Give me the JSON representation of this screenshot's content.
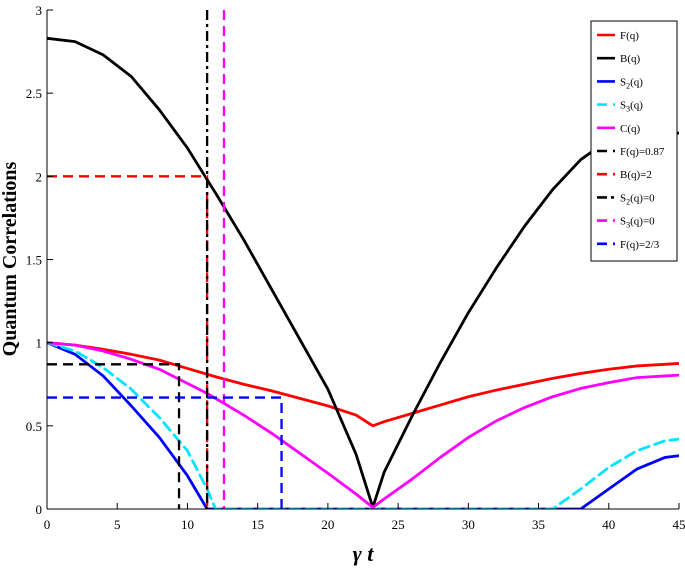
{
  "chart_data": {
    "type": "line",
    "title": "",
    "xlabel": "γ t",
    "ylabel": "Quantum Correlations",
    "xlim": [
      0,
      45
    ],
    "ylim": [
      0,
      3
    ],
    "grid": false,
    "legend_placement": "top-right",
    "x_ticks": [
      "0",
      "5",
      "10",
      "15",
      "20",
      "25",
      "30",
      "35",
      "40",
      "45"
    ],
    "y_ticks": [
      "0",
      "0.5",
      "1",
      "1.5",
      "2",
      "2.5",
      "3"
    ],
    "x_tick_values": [
      0,
      5,
      10,
      15,
      20,
      25,
      30,
      35,
      40,
      45
    ],
    "y_tick_values": [
      0,
      0.5,
      1,
      1.5,
      2,
      2.5,
      3
    ],
    "x": [
      0,
      2,
      4,
      6,
      8,
      10,
      11.4,
      12,
      14,
      16,
      18,
      20,
      22,
      23.2,
      24,
      26,
      28,
      30,
      32,
      34,
      36,
      38,
      40,
      42,
      44,
      45
    ],
    "series": [
      {
        "name": "F(q)",
        "legend_label": [
          "F(q)"
        ],
        "color": "#ff0000",
        "dash": "solid",
        "values": [
          1.0,
          0.985,
          0.96,
          0.93,
          0.895,
          0.845,
          0.81,
          0.795,
          0.75,
          0.71,
          0.665,
          0.62,
          0.565,
          0.5,
          0.525,
          0.575,
          0.625,
          0.675,
          0.715,
          0.75,
          0.785,
          0.815,
          0.84,
          0.86,
          0.87,
          0.875
        ]
      },
      {
        "name": "B(q)",
        "legend_label": [
          "B(q)"
        ],
        "color": "#000000",
        "dash": "solid",
        "values": [
          2.83,
          2.81,
          2.73,
          2.6,
          2.4,
          2.17,
          1.98,
          1.9,
          1.62,
          1.32,
          1.02,
          0.72,
          0.33,
          0.01,
          0.22,
          0.56,
          0.88,
          1.18,
          1.45,
          1.7,
          1.92,
          2.1,
          2.22,
          2.26,
          2.26,
          2.26
        ]
      },
      {
        "name": "S_2(q)",
        "legend_label": [
          "S",
          "2",
          "(q)"
        ],
        "color": "#0000ff",
        "dash": "solid",
        "values": [
          1.0,
          0.93,
          0.8,
          0.62,
          0.43,
          0.2,
          0.0,
          0.0,
          0.0,
          0.0,
          0.0,
          0.0,
          0.0,
          0.0,
          0.0,
          0.0,
          0.0,
          0.0,
          0.0,
          0.0,
          0.0,
          0.0,
          0.12,
          0.24,
          0.31,
          0.32
        ]
      },
      {
        "name": "S_3(q)",
        "legend_label": [
          "S",
          "3",
          "(q)"
        ],
        "color": "#00e5ff",
        "dash": "dashed",
        "values": [
          1.0,
          0.95,
          0.85,
          0.72,
          0.55,
          0.35,
          0.12,
          0.0,
          0.0,
          0.0,
          0.0,
          0.0,
          0.0,
          0.0,
          0.0,
          0.0,
          0.0,
          0.0,
          0.0,
          0.0,
          0.0,
          0.12,
          0.25,
          0.35,
          0.41,
          0.42
        ]
      },
      {
        "name": "C(q)",
        "legend_label": [
          "C(q)"
        ],
        "color": "#ff00ff",
        "dash": "solid",
        "values": [
          1.0,
          0.985,
          0.95,
          0.9,
          0.84,
          0.755,
          0.695,
          0.665,
          0.565,
          0.455,
          0.335,
          0.215,
          0.09,
          0.01,
          0.06,
          0.18,
          0.31,
          0.43,
          0.53,
          0.61,
          0.675,
          0.725,
          0.76,
          0.79,
          0.8,
          0.805
        ]
      }
    ],
    "reference_lines": [
      {
        "label": [
          "F(q)=0.87"
        ],
        "color": "#000000",
        "dash": "dashed",
        "path": [
          [
            0,
            0.87
          ],
          [
            9.4,
            0.87
          ],
          [
            9.4,
            0
          ]
        ]
      },
      {
        "label": [
          "B(q)=2"
        ],
        "color": "#ff0000",
        "dash": "dashed",
        "path": [
          [
            0,
            2
          ],
          [
            11.4,
            2
          ],
          [
            11.4,
            0
          ]
        ]
      },
      {
        "label": [
          "S",
          "2",
          "(q)=0"
        ],
        "color": "#000000",
        "dash": "dashdot",
        "path": [
          [
            11.4,
            3
          ],
          [
            11.4,
            0
          ]
        ]
      },
      {
        "label": [
          "S",
          "3",
          "(q)=0"
        ],
        "color": "#ff00ff",
        "dash": "dashed",
        "path": [
          [
            12.6,
            3
          ],
          [
            12.6,
            0
          ]
        ]
      },
      {
        "label": [
          "F(q)=2/3"
        ],
        "color": "#0000ff",
        "dash": "dashed",
        "path": [
          [
            0,
            0.67
          ],
          [
            16.7,
            0.67
          ],
          [
            16.7,
            0
          ]
        ]
      }
    ]
  }
}
